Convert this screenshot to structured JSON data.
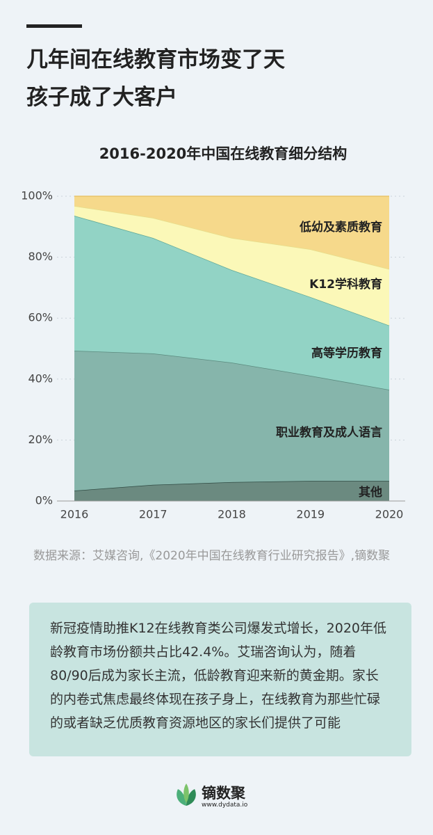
{
  "header": {
    "title_lines": [
      "几年间在线教育市场变了天",
      "孩子成了大客户"
    ]
  },
  "chart_data": {
    "type": "stacked_area",
    "title": "2016-2020年中国在线教育细分结构",
    "categories": [
      "2016",
      "2017",
      "2018",
      "2019",
      "2020"
    ],
    "series": [
      {
        "name": "其他",
        "color": "#6b8a80",
        "values": [
          3.4,
          5.3,
          6.2,
          6.6,
          6.6
        ]
      },
      {
        "name": "职业教育及成人语言",
        "color": "#86b5ab",
        "values": [
          45.9,
          43.1,
          39.2,
          34.5,
          29.9
        ]
      },
      {
        "name": "高等学历教育",
        "color": "#92d3c5",
        "values": [
          44.3,
          37.9,
          30.4,
          25.8,
          21.1
        ]
      },
      {
        "name": "K12学科教育",
        "color": "#fbf8b8",
        "values": [
          3.2,
          6.6,
          10.5,
          15.7,
          18.5
        ]
      },
      {
        "name": "低幼及素质教育",
        "color": "#f6d98b",
        "values": [
          3.2,
          7.1,
          13.7,
          17.4,
          23.9
        ]
      }
    ],
    "ylim": [
      0,
      100
    ],
    "yticks": [
      {
        "value": 0,
        "label": "0%"
      },
      {
        "value": 20,
        "label": "20%"
      },
      {
        "value": 40,
        "label": "40%"
      },
      {
        "value": 60,
        "label": "60%"
      },
      {
        "value": 80,
        "label": "80%"
      },
      {
        "value": 100,
        "label": "100%"
      }
    ],
    "grid": true
  },
  "source": "数据来源：艾媒咨询,《2020年中国在线教育行业研究报告》,镝数聚",
  "summary": "新冠疫情助推K12在线教育类公司爆发式增长，2020年低龄教育市场份额共占比42.4%。艾瑞咨询认为，随着80/90后成为家长主流，低龄教育迎来新的黄金期。家长的内卷式焦虑最终体现在孩子身上，在线教育为那些忙碌的或者缺乏优质教育资源地区的家长们提供了可能",
  "logo": {
    "name": "镝数聚",
    "url": "www.dydata.io"
  }
}
